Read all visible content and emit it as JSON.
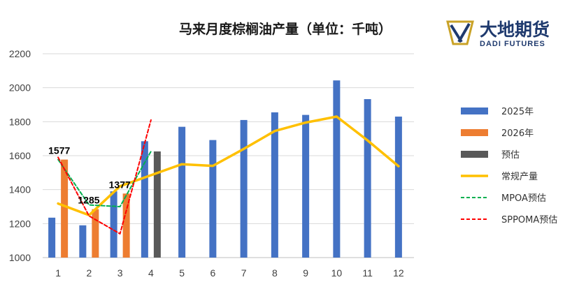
{
  "chart_data": {
    "type": "bar",
    "title": "马来月度棕榈油产量（单位：千吨）",
    "xlabel": "",
    "ylabel": "",
    "categories": [
      "1",
      "2",
      "3",
      "4",
      "5",
      "6",
      "7",
      "8",
      "9",
      "10",
      "11",
      "12"
    ],
    "ylim": [
      1000,
      2200
    ],
    "yticks": [
      1000,
      1200,
      1400,
      1600,
      1800,
      2000,
      2200
    ],
    "grid": true,
    "legend_position": "right",
    "series": [
      {
        "name": "2025年",
        "kind": "bar",
        "color": "#4472C4",
        "values": [
          1235,
          1190,
          1390,
          1685,
          1770,
          1692,
          1810,
          1855,
          1840,
          2043,
          1933,
          1830
        ]
      },
      {
        "name": "2026年",
        "kind": "bar",
        "color": "#ED7D31",
        "values": [
          1577,
          1285,
          1377,
          null,
          null,
          null,
          null,
          null,
          null,
          null,
          null,
          null
        ]
      },
      {
        "name": "预估",
        "kind": "bar",
        "color": "#595959",
        "values": [
          null,
          null,
          null,
          1625,
          null,
          null,
          null,
          null,
          null,
          null,
          null,
          null
        ]
      },
      {
        "name": "常规产量",
        "kind": "line",
        "color": "#FFC000",
        "values": [
          1318,
          1250,
          1420,
          1485,
          1550,
          1540,
          1640,
          1745,
          1795,
          1830,
          1690,
          1538
        ]
      },
      {
        "name": "MPOA预估",
        "kind": "dashed-line",
        "color": "#00B050",
        "values": [
          1577,
          1310,
          1300,
          1625,
          null,
          null,
          null,
          null,
          null,
          null,
          null,
          null
        ]
      },
      {
        "name": "SPPOMA预估",
        "kind": "dashed-line",
        "color": "#FF0000",
        "values": [
          1590,
          1245,
          1140,
          1810,
          null,
          null,
          null,
          null,
          null,
          null,
          null,
          null
        ]
      }
    ],
    "data_labels": [
      {
        "category": "1",
        "value": 1577,
        "text": "1577"
      },
      {
        "category": "2",
        "value": 1285,
        "text": "1285"
      },
      {
        "category": "3",
        "value": 1377,
        "text": "1377"
      }
    ]
  },
  "logo": {
    "name_cn": "大地期货",
    "name_en": "DADI FUTURES",
    "colors": {
      "navy": "#1f3a6e",
      "gold": "#c9a227"
    }
  }
}
